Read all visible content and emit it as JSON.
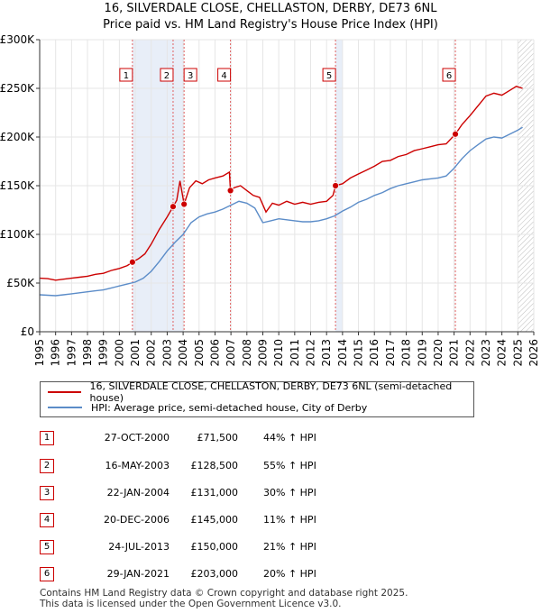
{
  "title_line1": "16, SILVERDALE CLOSE, CHELLASTON, DERBY, DE73 6NL",
  "title_line2": "Price paid vs. HM Land Registry's House Price Index (HPI)",
  "colors": {
    "property": "#cc0000",
    "hpi": "#5b8cc8",
    "shade": "#e8eef8",
    "marker_line": "#e06060",
    "grid": "#e6e6e6"
  },
  "chart_data": {
    "type": "line",
    "title": "Price paid vs. HM Land Registry's House Price Index (HPI)",
    "xlim": [
      1995,
      2026
    ],
    "ylim": [
      0,
      300000
    ],
    "x_ticks": [
      "1995",
      "1996",
      "1997",
      "1998",
      "1999",
      "2000",
      "2001",
      "2002",
      "2003",
      "2004",
      "2005",
      "2006",
      "2007",
      "2008",
      "2009",
      "2010",
      "2011",
      "2012",
      "2013",
      "2014",
      "2015",
      "2016",
      "2017",
      "2018",
      "2019",
      "2020",
      "2021",
      "2022",
      "2023",
      "2024",
      "2025",
      "2026"
    ],
    "y_ticks": [
      {
        "value": 0,
        "label": "£0"
      },
      {
        "value": 50000,
        "label": "£50K"
      },
      {
        "value": 100000,
        "label": "£100K"
      },
      {
        "value": 150000,
        "label": "£150K"
      },
      {
        "value": 200000,
        "label": "£200K"
      },
      {
        "value": 250000,
        "label": "£250K"
      },
      {
        "value": 300000,
        "label": "£300K"
      }
    ],
    "shaded_ranges": [
      [
        2000.82,
        2003.37
      ],
      [
        2003.37,
        2004.06
      ],
      [
        2006.97,
        2007.0
      ],
      [
        2013.56,
        2014.0
      ],
      [
        2021.08,
        2021.1
      ]
    ],
    "hatch_from": 2025.0,
    "series": [
      {
        "name": "16, SILVERDALE CLOSE, CHELLASTON, DERBY, DE73 6NL (semi-detached house)",
        "x": [
          1995.0,
          1995.5,
          1996.0,
          1996.5,
          1997.0,
          1997.5,
          1998.0,
          1998.5,
          1999.0,
          1999.5,
          2000.0,
          2000.5,
          2000.82,
          2001.2,
          2001.6,
          2002.0,
          2002.5,
          2003.0,
          2003.37,
          2003.6,
          2003.8,
          2004.06,
          2004.4,
          2004.8,
          2005.2,
          2005.6,
          2006.0,
          2006.5,
          2006.9,
          2006.97,
          2007.2,
          2007.6,
          2008.0,
          2008.4,
          2008.8,
          2009.2,
          2009.6,
          2010.0,
          2010.5,
          2011.0,
          2011.5,
          2012.0,
          2012.5,
          2013.0,
          2013.4,
          2013.56,
          2014.0,
          2014.5,
          2015.0,
          2015.5,
          2016.0,
          2016.5,
          2017.0,
          2017.5,
          2018.0,
          2018.5,
          2019.0,
          2019.5,
          2020.0,
          2020.5,
          2021.08,
          2021.5,
          2022.0,
          2022.5,
          2023.0,
          2023.5,
          2024.0,
          2024.5,
          2024.9,
          2025.3
        ],
        "values": [
          55000,
          54500,
          53000,
          54000,
          55000,
          56000,
          57000,
          59000,
          60000,
          63000,
          65000,
          68000,
          71500,
          75000,
          80000,
          90000,
          105000,
          118000,
          128500,
          135000,
          155000,
          131000,
          148000,
          155000,
          152000,
          156000,
          158000,
          160000,
          164000,
          145000,
          148000,
          150000,
          145000,
          140000,
          138000,
          123000,
          132000,
          130000,
          134000,
          131000,
          133000,
          131000,
          133000,
          134000,
          140000,
          150000,
          152000,
          158000,
          162000,
          166000,
          170000,
          175000,
          176000,
          180000,
          182000,
          186000,
          188000,
          190000,
          192000,
          193000,
          203000,
          213000,
          222000,
          232000,
          242000,
          245000,
          243000,
          248000,
          252000,
          250000
        ]
      },
      {
        "name": "HPI: Average price, semi-detached house, City of Derby",
        "x": [
          1995.0,
          1995.5,
          1996.0,
          1996.5,
          1997.0,
          1997.5,
          1998.0,
          1998.5,
          1999.0,
          1999.5,
          2000.0,
          2000.5,
          2001.0,
          2001.5,
          2002.0,
          2002.5,
          2003.0,
          2003.5,
          2004.0,
          2004.5,
          2005.0,
          2005.5,
          2006.0,
          2006.5,
          2007.0,
          2007.5,
          2008.0,
          2008.5,
          2009.0,
          2009.5,
          2010.0,
          2010.5,
          2011.0,
          2011.5,
          2012.0,
          2012.5,
          2013.0,
          2013.5,
          2014.0,
          2014.5,
          2015.0,
          2015.5,
          2016.0,
          2016.5,
          2017.0,
          2017.5,
          2018.0,
          2018.5,
          2019.0,
          2019.5,
          2020.0,
          2020.5,
          2021.0,
          2021.5,
          2022.0,
          2022.5,
          2023.0,
          2023.5,
          2024.0,
          2024.5,
          2025.0,
          2025.3
        ],
        "values": [
          38000,
          37500,
          37000,
          38000,
          39000,
          40000,
          41000,
          42000,
          43000,
          45000,
          47000,
          49000,
          51000,
          55000,
          62000,
          72000,
          83000,
          92000,
          100000,
          112000,
          118000,
          121000,
          123000,
          126000,
          130000,
          134000,
          132000,
          127000,
          112000,
          114000,
          116000,
          115000,
          114000,
          113000,
          113000,
          114000,
          116000,
          119000,
          124000,
          128000,
          133000,
          136000,
          140000,
          143000,
          147000,
          150000,
          152000,
          154000,
          156000,
          157000,
          158000,
          160000,
          168000,
          178000,
          186000,
          192000,
          198000,
          200000,
          199000,
          203000,
          207000,
          210000
        ]
      }
    ],
    "transactions": [
      {
        "n": "1",
        "date": "27-OCT-2000",
        "x": 2000.82,
        "price": 71500,
        "price_label": "£71,500",
        "hpi": "44% ↑ HPI"
      },
      {
        "n": "2",
        "date": "16-MAY-2003",
        "x": 2003.37,
        "price": 128500,
        "price_label": "£128,500",
        "hpi": "55% ↑ HPI"
      },
      {
        "n": "3",
        "date": "22-JAN-2004",
        "x": 2004.06,
        "price": 131000,
        "price_label": "£131,000",
        "hpi": "30% ↑ HPI"
      },
      {
        "n": "4",
        "date": "20-DEC-2006",
        "x": 2006.97,
        "price": 145000,
        "price_label": "£145,000",
        "hpi": "11% ↑ HPI"
      },
      {
        "n": "5",
        "date": "24-JUL-2013",
        "x": 2013.56,
        "price": 150000,
        "price_label": "£150,000",
        "hpi": "21% ↑ HPI"
      },
      {
        "n": "6",
        "date": "29-JAN-2021",
        "x": 2021.08,
        "price": 203000,
        "price_label": "£203,000",
        "hpi": "20% ↑ HPI"
      }
    ]
  },
  "legend": {
    "property": "16, SILVERDALE CLOSE, CHELLASTON, DERBY, DE73 6NL (semi-detached house)",
    "hpi": "HPI: Average price, semi-detached house, City of Derby"
  },
  "footer_line1": "Contains HM Land Registry data © Crown copyright and database right 2025.",
  "footer_line2": "This data is licensed under the Open Government Licence v3.0."
}
